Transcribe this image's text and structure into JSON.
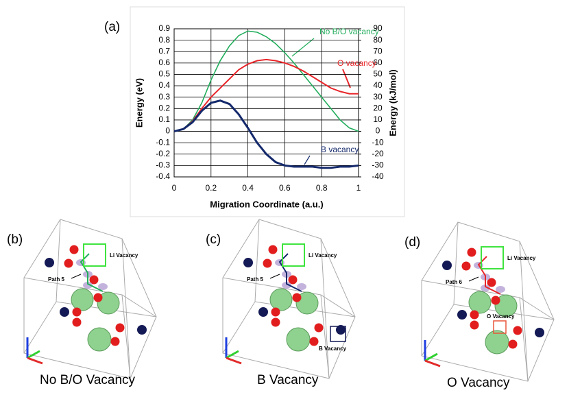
{
  "chart_data": {
    "type": "line",
    "panel_label": "(a)",
    "x": [
      0,
      0.05,
      0.1,
      0.15,
      0.2,
      0.25,
      0.3,
      0.35,
      0.4,
      0.45,
      0.5,
      0.55,
      0.6,
      0.65,
      0.7,
      0.75,
      0.8,
      0.85,
      0.9,
      0.95,
      1
    ],
    "series": [
      {
        "name": "No B/O vacancy",
        "color": "#22ad5c",
        "width": 1.6,
        "values": [
          0,
          0.02,
          0.1,
          0.25,
          0.45,
          0.62,
          0.75,
          0.84,
          0.88,
          0.87,
          0.83,
          0.77,
          0.69,
          0.6,
          0.5,
          0.4,
          0.3,
          0.2,
          0.1,
          0.03,
          0
        ]
      },
      {
        "name": "O vacancy",
        "color": "#e8262a",
        "width": 2,
        "values": [
          0,
          0.02,
          0.09,
          0.2,
          0.3,
          0.38,
          0.46,
          0.54,
          0.59,
          0.62,
          0.63,
          0.62,
          0.6,
          0.57,
          0.53,
          0.48,
          0.43,
          0.38,
          0.35,
          0.33,
          0.33
        ]
      },
      {
        "name": "B vacancy",
        "color": "#14296b",
        "width": 3,
        "values": [
          0,
          0.02,
          0.08,
          0.18,
          0.25,
          0.27,
          0.24,
          0.15,
          0.03,
          -0.1,
          -0.2,
          -0.27,
          -0.3,
          -0.31,
          -0.31,
          -0.31,
          -0.32,
          -0.32,
          -0.31,
          -0.31,
          -0.3
        ]
      }
    ],
    "xlabel": "Migration Coordinate (a.u.)",
    "ylabel": "Energy (eV)",
    "y2label": "Energy (kJ/mol)",
    "xlim": [
      0,
      1
    ],
    "xticks": [
      0,
      0.2,
      0.4,
      0.6,
      0.8,
      1
    ],
    "ylim": [
      -0.4,
      0.9
    ],
    "yticks": [
      -0.4,
      -0.3,
      -0.2,
      -0.1,
      0,
      0.1,
      0.2,
      0.3,
      0.4,
      0.5,
      0.6,
      0.7,
      0.8,
      0.9
    ],
    "y2lim": [
      -40,
      90
    ],
    "y2ticks": [
      -40,
      -30,
      -20,
      -10,
      0,
      10,
      20,
      30,
      40,
      50,
      60,
      70,
      80,
      90
    ],
    "grid": true
  },
  "panels": [
    {
      "label": "(b)",
      "li": "Li Vacancy",
      "path": "Path 5",
      "caption": "No B/O Vacancy"
    },
    {
      "label": "(c)",
      "li": "Li Vacancy",
      "path": "Path 5",
      "caption": "B Vacancy",
      "vacancy": "B Vacancy"
    },
    {
      "label": "(d)",
      "li": "Li Vacancy",
      "path": "Path 6",
      "caption": "O Vacancy",
      "vacancy": "O Vacancy"
    }
  ]
}
